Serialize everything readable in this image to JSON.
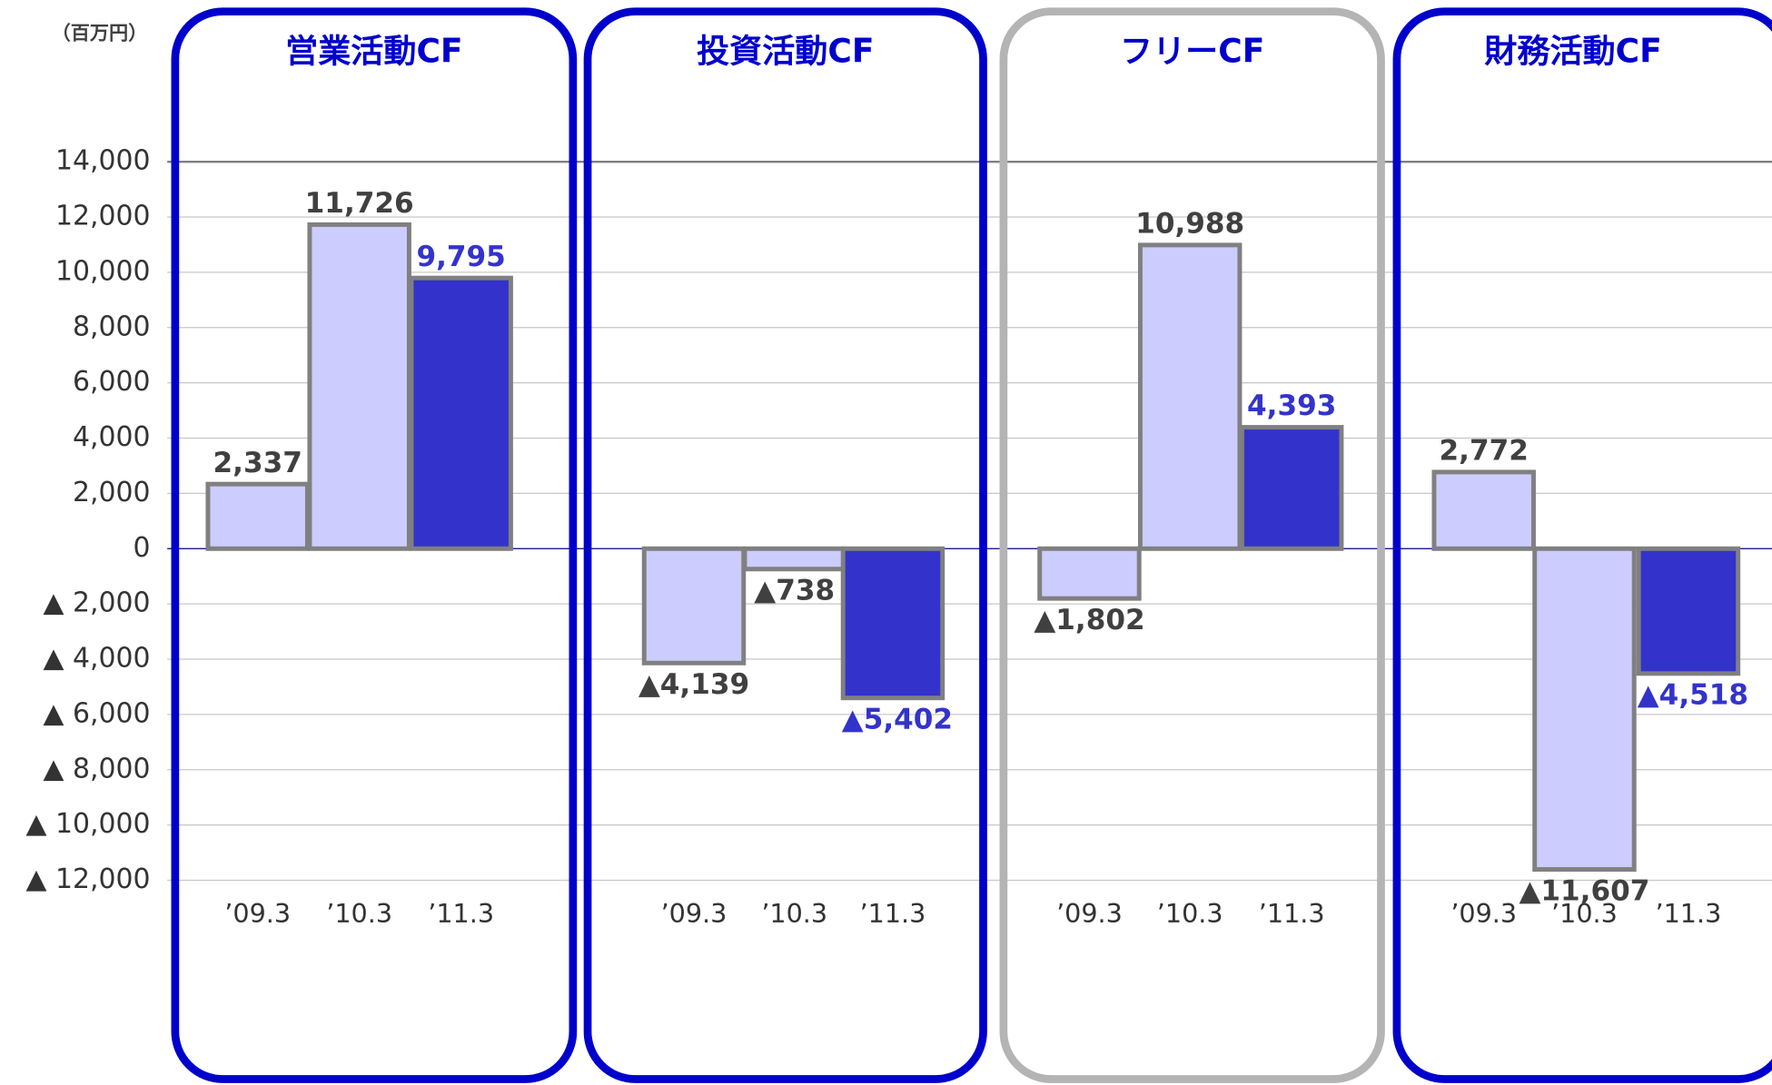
{
  "chart_data": {
    "type": "bar",
    "y_label": "（百万円）",
    "ylim": [
      -12000,
      14000
    ],
    "yticks": [
      {
        "value": 14000,
        "label": "14,000"
      },
      {
        "value": 12000,
        "label": "12,000"
      },
      {
        "value": 10000,
        "label": "10,000"
      },
      {
        "value": 8000,
        "label": "8,000"
      },
      {
        "value": 6000,
        "label": "6,000"
      },
      {
        "value": 4000,
        "label": "4,000"
      },
      {
        "value": 2000,
        "label": "2,000"
      },
      0,
      {
        "value": -2000,
        "label": "▲ 2,000"
      },
      {
        "value": -4000,
        "label": "▲ 4,000"
      },
      {
        "value": -6000,
        "label": "▲ 6,000"
      },
      {
        "value": -8000,
        "label": "▲ 8,000"
      },
      {
        "value": -10000,
        "label": "▲ 10,000"
      },
      {
        "value": -12000,
        "label": "▲ 12,000"
      }
    ],
    "grid": true,
    "categories": [
      "’09.3",
      "’10.3",
      "’11.3"
    ],
    "bar_colors": [
      "#ccccff",
      "#ccccff",
      "#3333cc"
    ],
    "label_colors": [
      "#404040",
      "#404040",
      "#3333cc"
    ],
    "panels": [
      {
        "title": "営業活動CF",
        "frame_color": "#0000cc",
        "values": [
          2337,
          11726,
          9795
        ],
        "value_labels": [
          "2,337",
          "11,726",
          "9,795"
        ]
      },
      {
        "title": "投資活動CF",
        "frame_color": "#0000cc",
        "values": [
          -4139,
          -738,
          -5402
        ],
        "value_labels": [
          "▲4,139",
          "▲738",
          "▲5,402"
        ]
      },
      {
        "title": "フリーCF",
        "frame_color": "#b4b4b4",
        "values": [
          -1802,
          10988,
          4393
        ],
        "value_labels": [
          "▲1,802",
          "10,988",
          "4,393"
        ]
      },
      {
        "title": "財務活動CF",
        "frame_color": "#0000cc",
        "values": [
          2772,
          -11607,
          -4518
        ],
        "value_labels": [
          "2,772",
          "▲11,607",
          "▲4,518"
        ]
      }
    ]
  }
}
